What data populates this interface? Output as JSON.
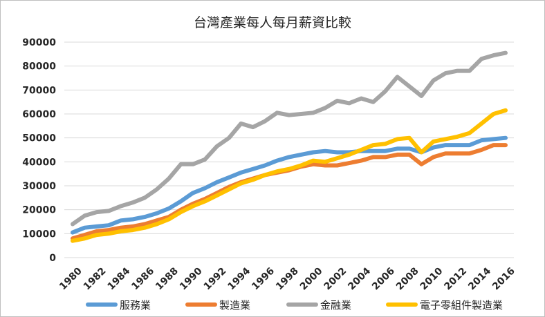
{
  "chart_data": {
    "type": "line",
    "title": "台灣產業每人每月薪資比較",
    "xlabel": "",
    "ylabel": "",
    "ylim": [
      0,
      90000
    ],
    "yticks": [
      0,
      10000,
      20000,
      30000,
      40000,
      50000,
      60000,
      70000,
      80000,
      90000
    ],
    "ytick_labels": [
      "0",
      "10000",
      "20000",
      "30000",
      "40000",
      "50000",
      "60000",
      "70000",
      "80000",
      "90000"
    ],
    "x": [
      1980,
      1981,
      1982,
      1983,
      1984,
      1985,
      1986,
      1987,
      1988,
      1989,
      1990,
      1991,
      1992,
      1993,
      1994,
      1995,
      1996,
      1997,
      1998,
      1999,
      2000,
      2001,
      2002,
      2003,
      2004,
      2005,
      2006,
      2007,
      2008,
      2009,
      2010,
      2011,
      2012,
      2013,
      2014,
      2015,
      2016
    ],
    "xtick_labels": [
      "1980",
      "1982",
      "1984",
      "1986",
      "1988",
      "1990",
      "1992",
      "1994",
      "1996",
      "1998",
      "2000",
      "2002",
      "2004",
      "2006",
      "2008",
      "2010",
      "2012",
      "2014",
      "2016"
    ],
    "grid": true,
    "legend_position": "bottom",
    "series": [
      {
        "name": "服務業",
        "color": "#5B9BD5",
        "values": [
          10500,
          12500,
          13000,
          13500,
          15500,
          16000,
          17000,
          18500,
          20500,
          23500,
          27000,
          29000,
          31500,
          33500,
          35500,
          37000,
          38500,
          40500,
          42000,
          43000,
          44000,
          44500,
          44000,
          44000,
          44500,
          44500,
          44500,
          45500,
          45500,
          44000,
          46000,
          47000,
          47000,
          47000,
          49000,
          49500,
          50000
        ]
      },
      {
        "name": "製造業",
        "color": "#ED7D31",
        "values": [
          8000,
          9500,
          11000,
          11500,
          12500,
          13000,
          14000,
          15500,
          17000,
          20000,
          22500,
          24500,
          27000,
          29500,
          31500,
          33000,
          34500,
          35500,
          36500,
          38000,
          39000,
          38500,
          38500,
          39500,
          40500,
          42000,
          42000,
          43000,
          43000,
          39000,
          42000,
          43500,
          43500,
          43500,
          45000,
          47000,
          47000
        ]
      },
      {
        "name": "金融業",
        "color": "#A5A5A5",
        "values": [
          14000,
          17500,
          19000,
          19500,
          21500,
          23000,
          25000,
          28500,
          33000,
          39000,
          39000,
          41000,
          46500,
          50000,
          56000,
          54500,
          57000,
          60500,
          59500,
          60000,
          60500,
          62500,
          65500,
          64500,
          66500,
          65000,
          69500,
          75500,
          71500,
          67500,
          74000,
          77000,
          78000,
          78000,
          83000,
          84500,
          85500
        ]
      },
      {
        "name": "電子零組件製造業",
        "color": "#FFC000",
        "values": [
          7000,
          8000,
          9500,
          10000,
          11000,
          11500,
          12500,
          14000,
          16000,
          19000,
          21500,
          23500,
          26000,
          28500,
          31000,
          32500,
          34500,
          36000,
          37000,
          38500,
          40500,
          40000,
          41500,
          43000,
          45000,
          47000,
          47500,
          49500,
          50000,
          44000,
          48500,
          49500,
          50500,
          52000,
          56000,
          60000,
          61500
        ]
      }
    ]
  }
}
